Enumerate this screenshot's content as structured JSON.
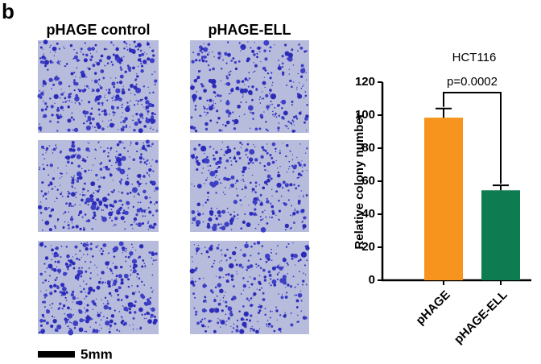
{
  "panel_label": "b",
  "image_columns": [
    "pHAGE control",
    "pHAGE-ELL"
  ],
  "scale_bar_label": "5mm",
  "chart_data": {
    "type": "bar",
    "title": "HCT116",
    "ylabel": "Relative colony number",
    "categories": [
      "pHAGE",
      "pHAGE-ELL"
    ],
    "values": [
      98.5,
      54.5
    ],
    "errors": [
      5.5,
      3
    ],
    "colors": [
      "#f7941d",
      "#0e7c50"
    ],
    "ylim": [
      0,
      120
    ],
    "yticks": [
      0,
      20,
      40,
      60,
      80,
      100,
      120
    ],
    "annotation": "p=0.0002"
  }
}
